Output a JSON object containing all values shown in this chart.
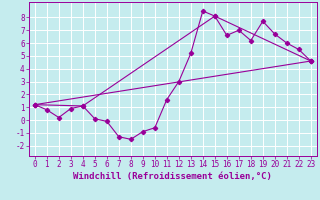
{
  "xlabel": "Windchill (Refroidissement éolien,°C)",
  "bg_color": "#c5ecee",
  "line_color": "#990099",
  "grid_color": "#ffffff",
  "xlim": [
    -0.5,
    23.5
  ],
  "ylim": [
    -2.8,
    9.2
  ],
  "yticks": [
    -2,
    -1,
    0,
    1,
    2,
    3,
    4,
    5,
    6,
    7,
    8
  ],
  "xticks": [
    0,
    1,
    2,
    3,
    4,
    5,
    6,
    7,
    8,
    9,
    10,
    11,
    12,
    13,
    14,
    15,
    16,
    17,
    18,
    19,
    20,
    21,
    22,
    23
  ],
  "line1_x": [
    0,
    1,
    2,
    3,
    4,
    5,
    6,
    7,
    8,
    9,
    10,
    11,
    12,
    13,
    14,
    15,
    16,
    17,
    18,
    19,
    20,
    21,
    22,
    23
  ],
  "line1_y": [
    1.2,
    0.8,
    0.2,
    0.9,
    1.1,
    0.1,
    -0.1,
    -1.3,
    -1.5,
    -0.9,
    -0.6,
    1.6,
    3.0,
    5.2,
    8.5,
    8.1,
    6.6,
    7.0,
    6.2,
    7.7,
    6.7,
    6.0,
    5.5,
    4.6
  ],
  "line2_x": [
    0,
    4,
    15,
    23
  ],
  "line2_y": [
    1.2,
    1.1,
    8.1,
    4.6
  ],
  "line3_x": [
    0,
    23
  ],
  "line3_y": [
    1.2,
    4.6
  ],
  "tick_fontsize": 5.5,
  "xlabel_fontsize": 6.5,
  "marker_size": 2.2,
  "line_width": 0.8
}
